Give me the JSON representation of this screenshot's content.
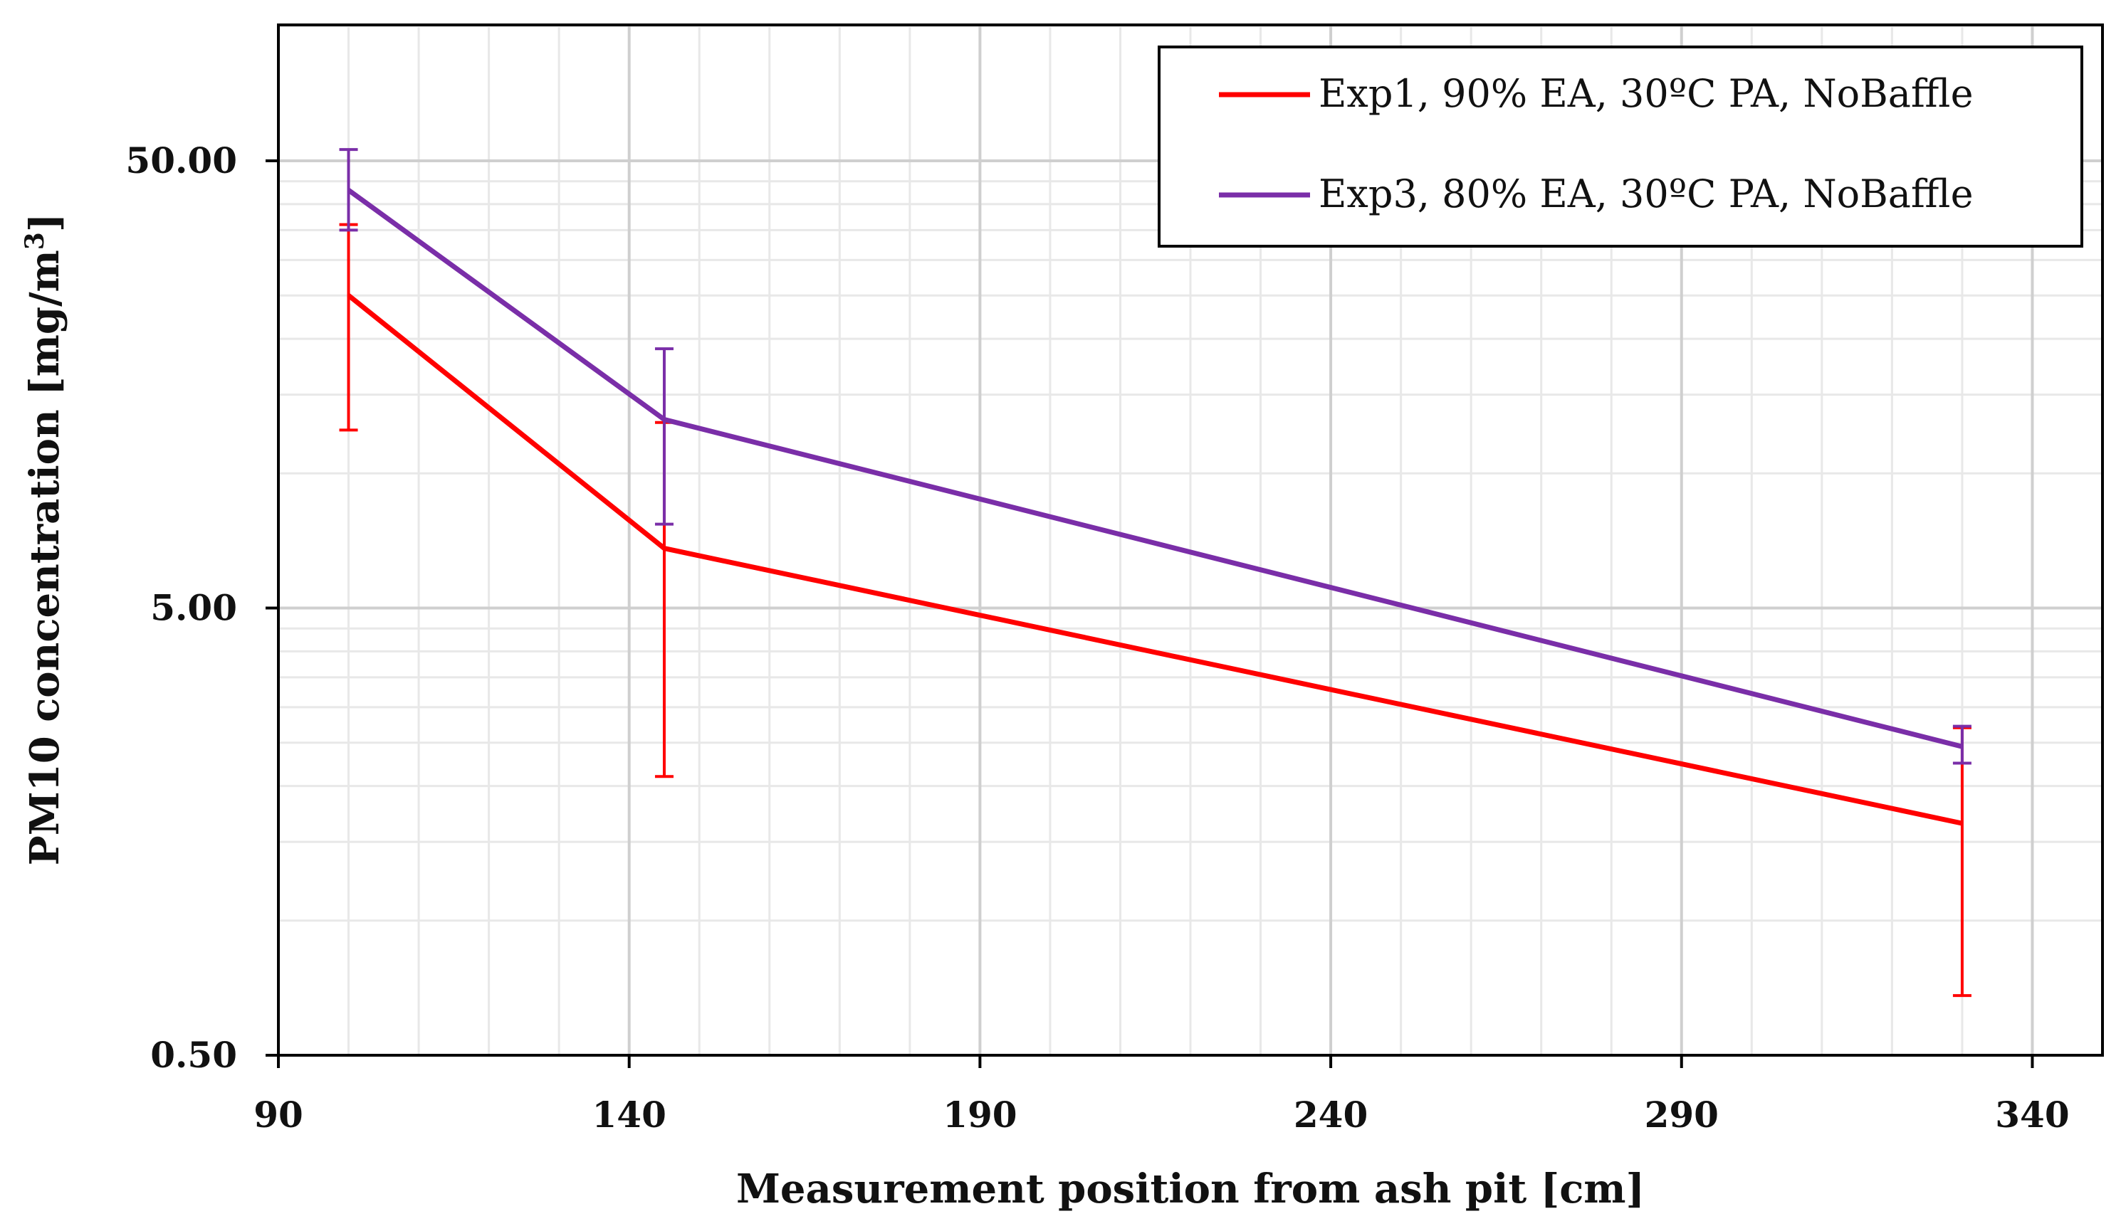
{
  "chart_data": {
    "type": "line",
    "title": "",
    "xlabel": "Measurement position from ash pit [cm]",
    "ylabel_main": "PM10 concentration [mg/m",
    "ylabel_sup": "3",
    "ylabel_close": "]",
    "xlim": [
      90,
      350
    ],
    "ylim": [
      0.5,
      100
    ],
    "yscale": "log",
    "xticks": [
      90,
      140,
      190,
      240,
      290,
      340
    ],
    "xtick_labels": [
      "90",
      "140",
      "190",
      "240",
      "290",
      "340"
    ],
    "yticks": [
      0.5,
      5,
      50
    ],
    "ytick_labels": [
      "0.50",
      "5.00",
      "50.00"
    ],
    "grid": true,
    "legend_position": "top-right",
    "series": [
      {
        "name": "Exp1, 90% EA, 30ºC PA, NoBaffle",
        "color": "#ff0000",
        "x": [
          100,
          145,
          330
        ],
        "y": [
          25,
          6.8,
          1.65
        ],
        "err_low": [
          12.5,
          2.1,
          0.68
        ],
        "err_high": [
          36,
          13,
          2.7
        ]
      },
      {
        "name": "Exp3, 80% EA, 30ºC PA, NoBaffle",
        "color": "#7a2ea8",
        "x": [
          100,
          145,
          330
        ],
        "y": [
          43,
          13.2,
          2.45
        ],
        "err_low": [
          35,
          7.7,
          2.25
        ],
        "err_high": [
          53,
          19,
          2.72
        ]
      }
    ]
  }
}
